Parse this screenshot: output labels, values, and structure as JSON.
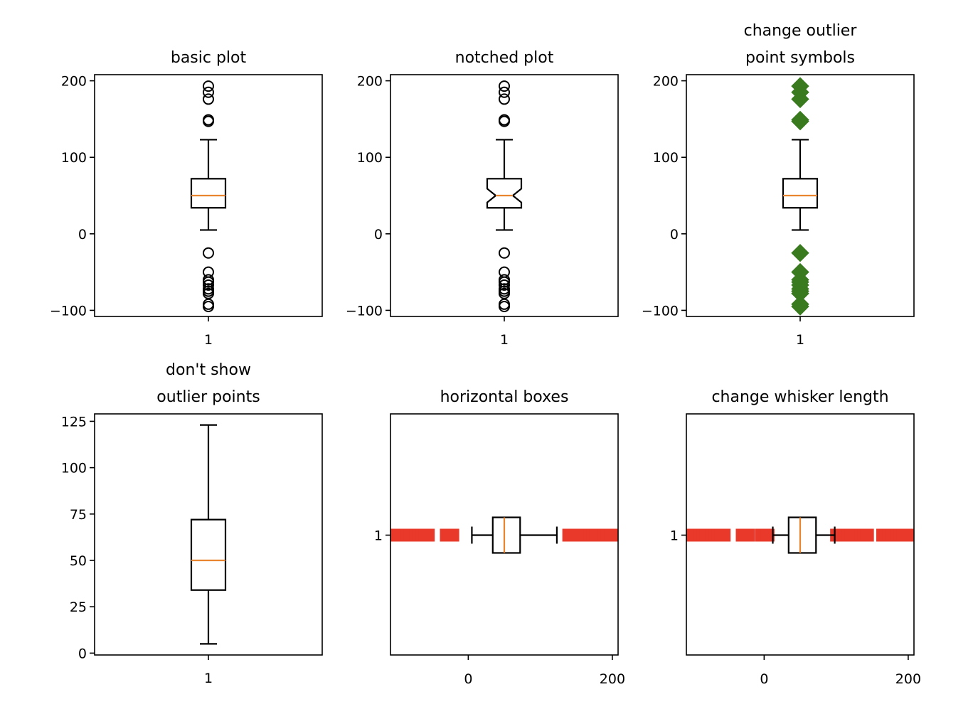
{
  "colors": {
    "box": "#000000",
    "median": "#e8852e",
    "green_flier": "#3a7a1f",
    "red_flier": "#e8392a"
  },
  "chart_data": [
    {
      "type": "boxplot",
      "title": "basic plot",
      "orientation": "vertical",
      "categories": [
        "1"
      ],
      "ylim": [
        -108,
        208
      ],
      "yticks": [
        -100,
        0,
        100,
        200
      ],
      "tick_labels": [
        "−100",
        "0",
        "100",
        "200"
      ],
      "stats": {
        "whislo": 5,
        "q1": 34,
        "med": 50,
        "q3": 72,
        "whishi": 123
      },
      "notch": false,
      "fliers": [
        193,
        185,
        176,
        149,
        147,
        -25,
        -50,
        -60,
        -63,
        -67,
        -72,
        -75,
        -78,
        -92,
        -95
      ],
      "flier_marker": "circle"
    },
    {
      "type": "boxplot",
      "title": "notched plot",
      "orientation": "vertical",
      "categories": [
        "1"
      ],
      "ylim": [
        -108,
        208
      ],
      "yticks": [
        -100,
        0,
        100,
        200
      ],
      "tick_labels": [
        "−100",
        "0",
        "100",
        "200"
      ],
      "stats": {
        "whislo": 5,
        "q1": 34,
        "med": 50,
        "q3": 72,
        "whishi": 123
      },
      "notch": true,
      "notch_range": [
        41,
        59
      ],
      "fliers": [
        193,
        185,
        176,
        149,
        147,
        -25,
        -50,
        -60,
        -63,
        -67,
        -72,
        -75,
        -78,
        -92,
        -95
      ],
      "flier_marker": "circle"
    },
    {
      "type": "boxplot",
      "title": "change outlier\npoint symbols",
      "orientation": "vertical",
      "categories": [
        "1"
      ],
      "ylim": [
        -108,
        208
      ],
      "yticks": [
        -100,
        0,
        100,
        200
      ],
      "tick_labels": [
        "−100",
        "0",
        "100",
        "200"
      ],
      "stats": {
        "whislo": 5,
        "q1": 34,
        "med": 50,
        "q3": 72,
        "whishi": 123
      },
      "notch": false,
      "fliers": [
        193,
        185,
        176,
        149,
        147,
        -25,
        -50,
        -60,
        -63,
        -67,
        -72,
        -75,
        -78,
        -92,
        -95
      ],
      "flier_marker": "diamond-green"
    },
    {
      "type": "boxplot",
      "title": "don't show\noutlier points",
      "orientation": "vertical",
      "categories": [
        "1"
      ],
      "ylim": [
        -1,
        129
      ],
      "yticks": [
        0,
        25,
        50,
        75,
        100,
        125
      ],
      "tick_labels": [
        "0",
        "25",
        "50",
        "75",
        "100",
        "125"
      ],
      "stats": {
        "whislo": 5,
        "q1": 34,
        "med": 50,
        "q3": 72,
        "whishi": 123
      },
      "notch": false,
      "fliers": [],
      "flier_marker": "none"
    },
    {
      "type": "boxplot",
      "title": "horizontal boxes",
      "orientation": "horizontal",
      "categories": [
        "1"
      ],
      "xlim": [
        -108,
        208
      ],
      "xticks": [
        0,
        200
      ],
      "tick_labels": [
        "0",
        "200"
      ],
      "stats": {
        "whislo": 5,
        "q1": 34,
        "med": 50,
        "q3": 72,
        "whishi": 123
      },
      "notch": false,
      "fliers": [
        -104,
        -100,
        -96,
        -92,
        -88,
        -84,
        -80,
        -76,
        -72,
        -68,
        -64,
        -60,
        -56,
        -30,
        -26,
        -22,
        140,
        144,
        148,
        152,
        165,
        169,
        173,
        177,
        181,
        185,
        189,
        193,
        198
      ],
      "flier_marker": "square-red"
    },
    {
      "type": "boxplot",
      "title": "change whisker length",
      "orientation": "horizontal",
      "categories": [
        "1"
      ],
      "xlim": [
        -108,
        208
      ],
      "xticks": [
        0,
        200
      ],
      "tick_labels": [
        "0",
        "200"
      ],
      "stats": {
        "whislo": 12,
        "q1": 34,
        "med": 50,
        "q3": 72,
        "whishi": 98
      },
      "notch": false,
      "fliers": [
        -104,
        -100,
        -96,
        -92,
        -88,
        -84,
        -80,
        -76,
        -72,
        -68,
        -64,
        -60,
        -56,
        -30,
        -26,
        -22,
        -3,
        1,
        5,
        101,
        105,
        109,
        113,
        117,
        121,
        135,
        139,
        143,
        165,
        169,
        173,
        177,
        181,
        185,
        189,
        193,
        198
      ],
      "flier_marker": "square-red"
    }
  ]
}
